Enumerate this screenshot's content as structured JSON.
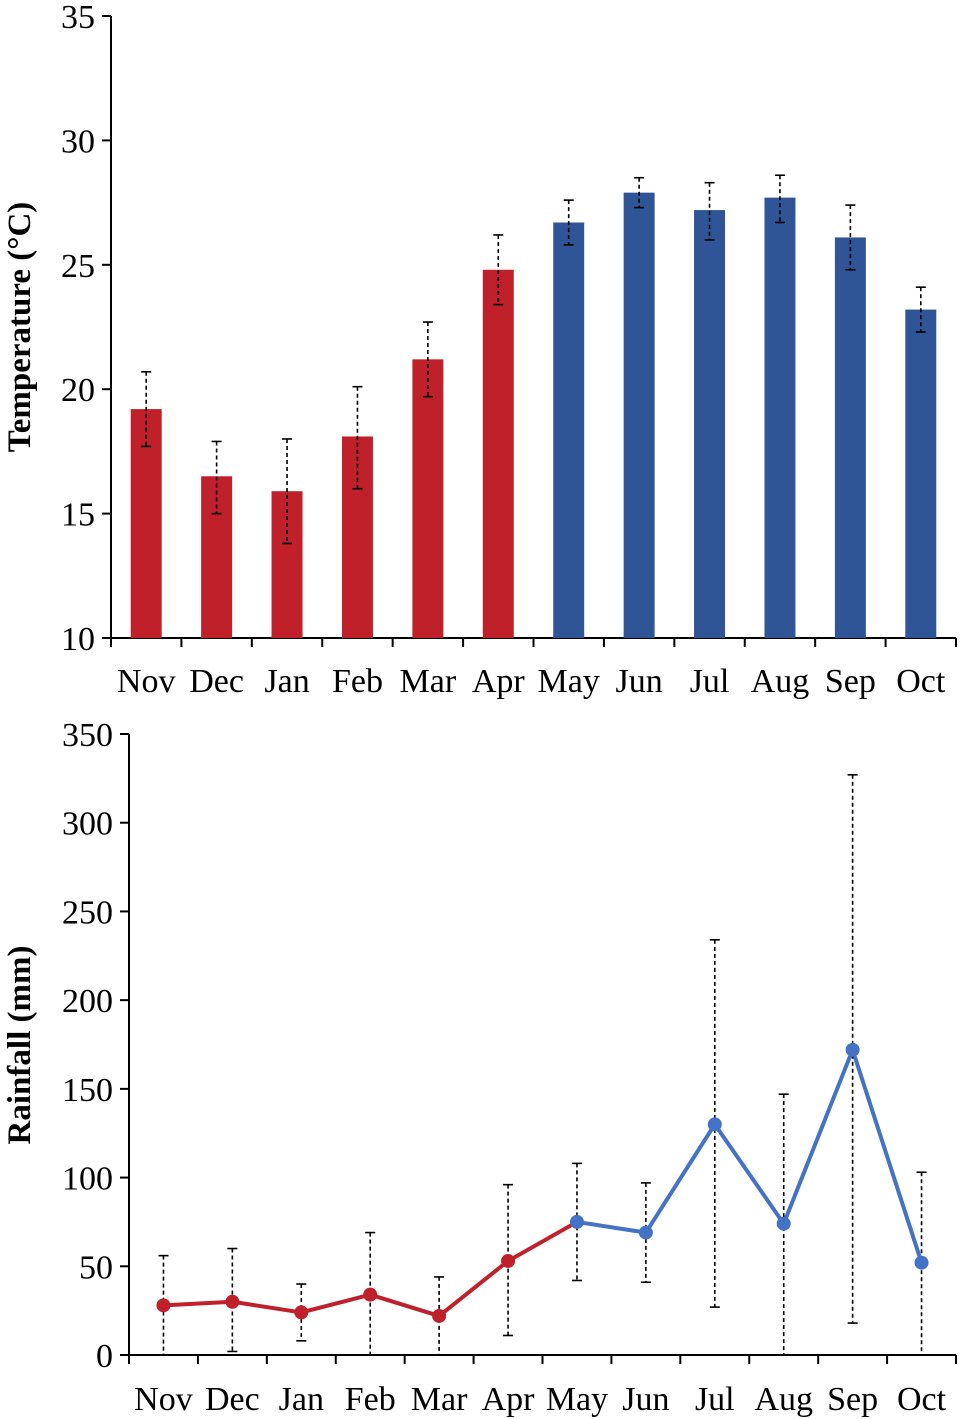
{
  "colors": {
    "dry": "#c0202a",
    "wet": "#2f5597",
    "wet_line": "#4472c4"
  },
  "chart_data": [
    {
      "type": "bar",
      "ylabel": "Temperature (°C)",
      "xlabel": "",
      "ylim": [
        10,
        35
      ],
      "yticks": [
        10,
        15,
        20,
        25,
        30,
        35
      ],
      "grid": false,
      "categories": [
        "Nov",
        "Dec",
        "Jan",
        "Feb",
        "Mar",
        "Apr",
        "May",
        "Jun",
        "Jul",
        "Aug",
        "Sep",
        "Oct"
      ],
      "values": [
        19.2,
        16.5,
        15.9,
        18.1,
        21.2,
        24.8,
        26.7,
        27.9,
        27.2,
        27.7,
        26.1,
        23.2
      ],
      "error_low": [
        17.7,
        15.0,
        13.8,
        16.0,
        19.7,
        23.4,
        25.8,
        27.3,
        26.0,
        26.7,
        24.8,
        22.3
      ],
      "error_high": [
        20.7,
        17.9,
        18.0,
        20.1,
        22.7,
        26.2,
        27.6,
        28.5,
        28.3,
        28.6,
        27.4,
        24.1
      ],
      "season": [
        "dry",
        "dry",
        "dry",
        "dry",
        "dry",
        "dry",
        "wet",
        "wet",
        "wet",
        "wet",
        "wet",
        "wet"
      ]
    },
    {
      "type": "line",
      "ylabel": "Rainfall (mm)",
      "xlabel": "",
      "ylim": [
        0,
        350
      ],
      "yticks": [
        0,
        50,
        100,
        150,
        200,
        250,
        300,
        350
      ],
      "grid": false,
      "categories": [
        "Nov",
        "Dec",
        "Jan",
        "Feb",
        "Mar",
        "Apr",
        "May",
        "Jun",
        "Jul",
        "Aug",
        "Sep",
        "Oct"
      ],
      "values": [
        28,
        30,
        24,
        34,
        22,
        53,
        75,
        69,
        130,
        74,
        172,
        52
      ],
      "error_low": [
        0,
        2,
        8,
        0,
        0,
        11,
        42,
        41,
        27,
        0,
        18,
        0
      ],
      "error_high": [
        56,
        60,
        40,
        69,
        44,
        96,
        108,
        97,
        234,
        147,
        327,
        103
      ],
      "season": [
        "dry",
        "dry",
        "dry",
        "dry",
        "dry",
        "dry",
        "wet",
        "wet",
        "wet",
        "wet",
        "wet",
        "wet"
      ]
    }
  ]
}
